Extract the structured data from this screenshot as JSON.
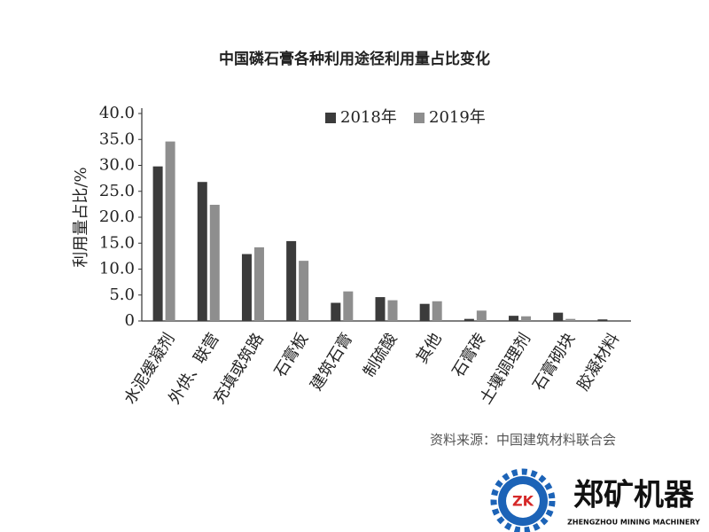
{
  "chart_data": {
    "type": "bar",
    "title": "中国磷石膏各种利用途径利用量占比变化",
    "ylabel": "利用量占比/%",
    "categories": [
      "水泥缓凝剂",
      "外供、联营",
      "充填或筑路",
      "石膏板",
      "建筑石膏",
      "制硫酸",
      "其他",
      "石膏砖",
      "土壤调理剂",
      "石膏砌块",
      "胶凝材料"
    ],
    "series": [
      {
        "name": "2018年",
        "color": "#3b3b3b",
        "values": [
          29.8,
          26.8,
          12.9,
          15.4,
          3.5,
          4.6,
          3.3,
          0.4,
          1.0,
          1.6,
          0.3
        ]
      },
      {
        "name": "2019年",
        "color": "#8e8e8e",
        "values": [
          34.6,
          22.4,
          14.2,
          11.6,
          5.7,
          4.0,
          3.8,
          2.0,
          0.9,
          0.4,
          0
        ]
      }
    ],
    "ylim": [
      0,
      40
    ],
    "yticks": [
      0,
      {
        "value": 5,
        "label": "5.0"
      },
      {
        "value": 10,
        "label": "10.0"
      },
      {
        "value": 15,
        "label": "15.0"
      },
      {
        "value": 20,
        "label": "20.0"
      },
      {
        "value": 25,
        "label": "25.0"
      },
      {
        "value": 30,
        "label": "30.0"
      },
      {
        "value": 35,
        "label": "35.0"
      },
      {
        "value": 40,
        "label": "40.0"
      }
    ],
    "grid": false,
    "legend": "top",
    "source": "资料来源：中国建筑材料联合会"
  },
  "brand": {
    "mark": "ZK",
    "name": "郑矿机器",
    "subtitle": "ZHENGZHOU MINING MACHINERY"
  }
}
